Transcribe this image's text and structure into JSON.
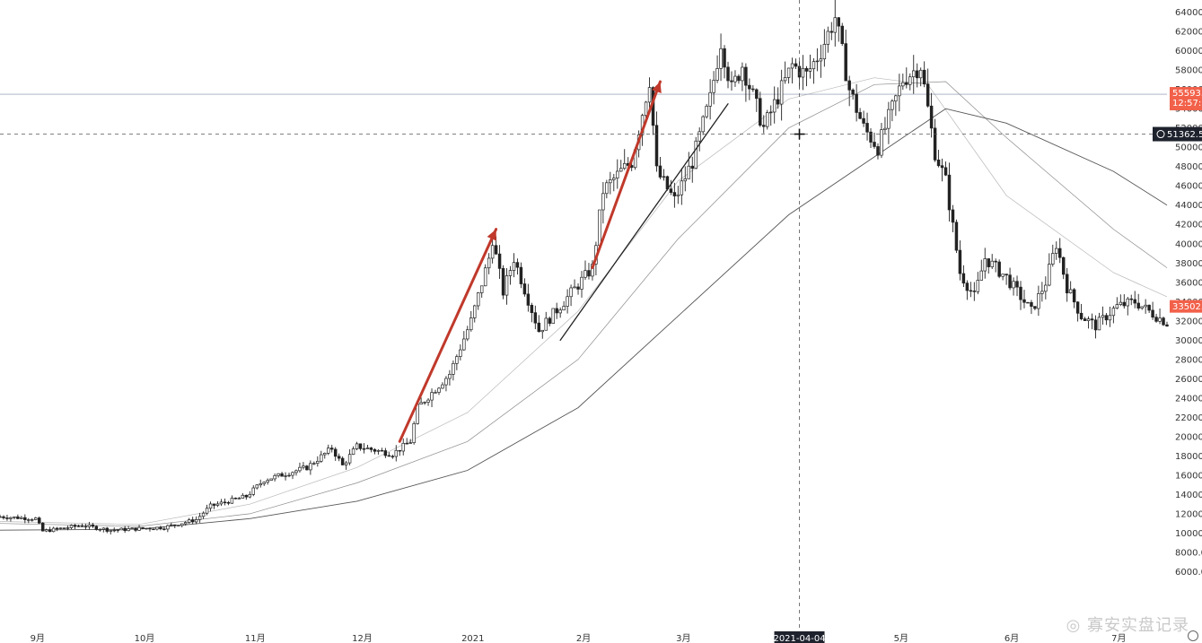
{
  "chart_data": {
    "type": "candlestick",
    "ylim": [
      0,
      64800
    ],
    "y_ticks": [
      6000,
      8000,
      10000,
      12000,
      14000,
      16000,
      18000,
      20000,
      22000,
      24000,
      26000,
      28000,
      30000,
      32000,
      34000,
      36000,
      38000,
      40000,
      42000,
      44000,
      46000,
      48000,
      50000,
      52000,
      54000,
      56000,
      58000,
      60000,
      62000,
      64000
    ],
    "y_tick_labels": [
      "6000.0",
      "8000.0",
      "10000.0",
      "12000.0",
      "14000.0",
      "16000.0",
      "18000.0",
      "20000.0",
      "22000.0",
      "24000.0",
      "26000.0",
      "28000.0",
      "30000.0",
      "32000.0",
      "34000.0",
      "36000.0",
      "38000.0",
      "40000.0",
      "42000.0",
      "44000.0",
      "46000.0",
      "48000.0",
      "50000.0",
      "52000.0",
      "54000.0",
      "56000.0",
      "58000.0",
      "60000.0",
      "62000.0",
      "64000.0"
    ],
    "x_labels": [
      "9月",
      "10月",
      "11月",
      "12月",
      "2021",
      "2月",
      "3月",
      "4月",
      "5月",
      "6月",
      "7月"
    ],
    "x_label_dates": [
      "2020-09-01",
      "2020-10-01",
      "2020-11-01",
      "2020-12-01",
      "2021-01-01",
      "2021-02-01",
      "2021-03-01",
      "2021-04-01",
      "2021-05-01",
      "2021-06-01",
      "2021-07-01"
    ],
    "date_start": "2020-08-23",
    "date_end": "2021-07-16",
    "price_anchors": [
      [
        "2020-08-23",
        11700
      ],
      [
        "2020-09-02",
        11500
      ],
      [
        "2020-09-04",
        10200
      ],
      [
        "2020-09-15",
        10800
      ],
      [
        "2020-09-23",
        10300
      ],
      [
        "2020-10-08",
        10600
      ],
      [
        "2020-10-17",
        11400
      ],
      [
        "2020-10-21",
        12800
      ],
      [
        "2020-10-31",
        13800
      ],
      [
        "2020-11-05",
        15500
      ],
      [
        "2020-11-17",
        16800
      ],
      [
        "2020-11-24",
        18800
      ],
      [
        "2020-11-27",
        17000
      ],
      [
        "2020-12-01",
        19000
      ],
      [
        "2020-12-11",
        18200
      ],
      [
        "2020-12-16",
        19500
      ],
      [
        "2020-12-18",
        23000
      ],
      [
        "2020-12-27",
        26500
      ],
      [
        "2021-01-02",
        32000
      ],
      [
        "2021-01-07",
        38500
      ],
      [
        "2021-01-08",
        40500
      ],
      [
        "2021-01-11",
        35000
      ],
      [
        "2021-01-14",
        38500
      ],
      [
        "2021-01-21",
        31000
      ],
      [
        "2021-01-28",
        34000
      ],
      [
        "2021-02-05",
        37500
      ],
      [
        "2021-02-08",
        45500
      ],
      [
        "2021-02-13",
        47500
      ],
      [
        "2021-02-16",
        48500
      ],
      [
        "2021-02-21",
        57000
      ],
      [
        "2021-02-23",
        47500
      ],
      [
        "2021-02-28",
        44500
      ],
      [
        "2021-03-05",
        48500
      ],
      [
        "2021-03-10",
        55000
      ],
      [
        "2021-03-13",
        61000
      ],
      [
        "2021-03-16",
        56000
      ],
      [
        "2021-03-19",
        58500
      ],
      [
        "2021-03-25",
        52000
      ],
      [
        "2021-04-02",
        58500
      ],
      [
        "2021-04-06",
        57500
      ],
      [
        "2021-04-10",
        60000
      ],
      [
        "2021-04-14",
        63500
      ],
      [
        "2021-04-18",
        56000
      ],
      [
        "2021-04-22",
        52000
      ],
      [
        "2021-04-26",
        50000
      ],
      [
        "2021-05-03",
        57000
      ],
      [
        "2021-05-08",
        58500
      ],
      [
        "2021-05-12",
        49500
      ],
      [
        "2021-05-15",
        46500
      ],
      [
        "2021-05-19",
        37000
      ],
      [
        "2021-05-23",
        34500
      ],
      [
        "2021-05-26",
        38500
      ],
      [
        "2021-06-01",
        36500
      ],
      [
        "2021-06-08",
        33000
      ],
      [
        "2021-06-12",
        36000
      ],
      [
        "2021-06-15",
        40000
      ],
      [
        "2021-06-18",
        35500
      ],
      [
        "2021-06-22",
        32500
      ],
      [
        "2021-06-26",
        31500
      ],
      [
        "2021-07-02",
        33500
      ],
      [
        "2021-07-07",
        34000
      ],
      [
        "2021-07-13",
        32500
      ],
      [
        "2021-07-16",
        31800
      ]
    ],
    "ma_lines": [
      {
        "points": [
          [
            "2020-08-23",
            11200
          ],
          [
            "2020-10-01",
            10900
          ],
          [
            "2020-11-01",
            13000
          ],
          [
            "2020-12-01",
            16800
          ],
          [
            "2021-01-01",
            22500
          ],
          [
            "2021-02-01",
            33000
          ],
          [
            "2021-03-01",
            46500
          ],
          [
            "2021-04-01",
            55000
          ],
          [
            "2021-04-25",
            57200
          ],
          [
            "2021-05-10",
            56500
          ],
          [
            "2021-06-01",
            45000
          ],
          [
            "2021-07-01",
            37000
          ],
          [
            "2021-07-16",
            34500
          ]
        ]
      },
      {
        "points": [
          [
            "2020-08-23",
            11000
          ],
          [
            "2020-10-01",
            10700
          ],
          [
            "2020-11-01",
            12000
          ],
          [
            "2020-12-01",
            15200
          ],
          [
            "2021-01-01",
            19500
          ],
          [
            "2021-02-01",
            28000
          ],
          [
            "2021-03-01",
            40500
          ],
          [
            "2021-04-01",
            52000
          ],
          [
            "2021-04-25",
            56500
          ],
          [
            "2021-05-15",
            56800
          ],
          [
            "2021-06-01",
            51000
          ],
          [
            "2021-07-01",
            41500
          ],
          [
            "2021-07-16",
            37500
          ]
        ]
      },
      {
        "points": [
          [
            "2020-08-23",
            10300
          ],
          [
            "2020-10-01",
            10400
          ],
          [
            "2020-11-01",
            11500
          ],
          [
            "2020-12-01",
            13300
          ],
          [
            "2021-01-01",
            16500
          ],
          [
            "2021-02-01",
            23000
          ],
          [
            "2021-03-01",
            32500
          ],
          [
            "2021-04-01",
            43000
          ],
          [
            "2021-05-01",
            50500
          ],
          [
            "2021-05-15",
            54000
          ],
          [
            "2021-06-01",
            52500
          ],
          [
            "2021-07-01",
            47500
          ],
          [
            "2021-07-16",
            44000
          ]
        ]
      }
    ],
    "trend_arrows": [
      {
        "color": "#c0392b",
        "from": [
          "2020-12-13",
          19500
        ],
        "to": [
          "2021-01-09",
          41500
        ]
      },
      {
        "color": "#c0392b",
        "from": [
          "2021-02-05",
          37500
        ],
        "to": [
          "2021-02-24",
          56800
        ]
      },
      {
        "color": "#222222",
        "from": [
          "2021-01-27",
          30000
        ],
        "to": [
          "2021-03-15",
          54500
        ]
      }
    ],
    "horizontal_line": {
      "price": 55500,
      "color": "#7d8aa6"
    },
    "price_label": {
      "lines": [
        "55593.",
        "12:57:5"
      ],
      "color": "#f2614a"
    },
    "last_price_label": {
      "text": "33502.",
      "color": "#f2614a",
      "price": 33502
    },
    "crosshair": {
      "price": 51362.5,
      "label": "51362.5",
      "date": "2021-04-04",
      "date_label": "2021-04-04"
    }
  },
  "watermark": "◎ 寡安实盘记录"
}
